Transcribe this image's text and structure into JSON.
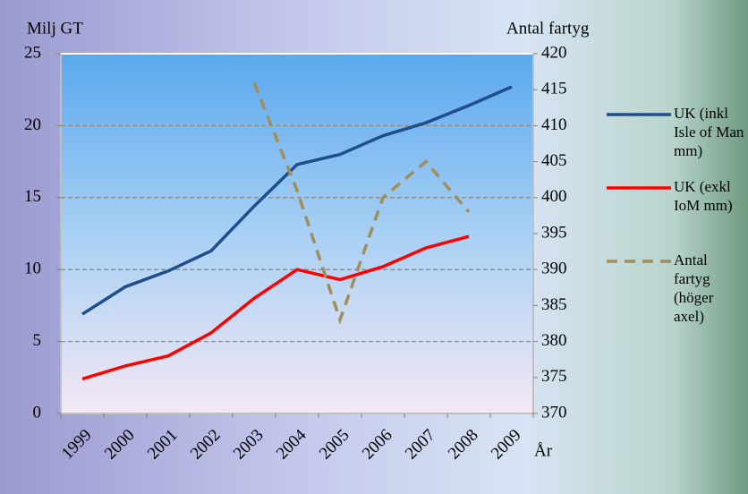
{
  "chart_data": {
    "type": "line",
    "y_label": "Milj GT",
    "y2_label": "Antal fartyg",
    "x_label": "År",
    "categories": [
      "1999",
      "2000",
      "2001",
      "2002",
      "2003",
      "2004",
      "2005",
      "2006",
      "2007",
      "2008",
      "2009"
    ],
    "series": [
      {
        "name": "UK (inkl Isle of Man mm)",
        "color": "#1f4e8c",
        "values": [
          6.9,
          8.8,
          9.9,
          11.3,
          14.4,
          17.3,
          18.0,
          19.3,
          20.2,
          21.4,
          22.7
        ]
      },
      {
        "name": "UK (exkl IoM mm)",
        "color": "#ff0000",
        "values": [
          2.4,
          3.3,
          4.0,
          5.6,
          8.0,
          10.0,
          9.3,
          10.2,
          11.5,
          12.3,
          null
        ]
      },
      {
        "name": "Antal fartyg (höger axel)",
        "color": "#a08f5c",
        "dashed": true,
        "axis": "y2",
        "values": [
          null,
          null,
          null,
          null,
          416,
          401,
          383,
          400,
          405,
          398,
          null
        ]
      }
    ],
    "ylim": [
      0,
      25
    ],
    "yticks": [
      0,
      5,
      10,
      15,
      20,
      25
    ],
    "y2lim": [
      370,
      420
    ],
    "y2ticks": [
      370,
      375,
      380,
      385,
      390,
      395,
      400,
      405,
      410,
      415,
      420
    ],
    "grid": true,
    "legend": "right"
  }
}
